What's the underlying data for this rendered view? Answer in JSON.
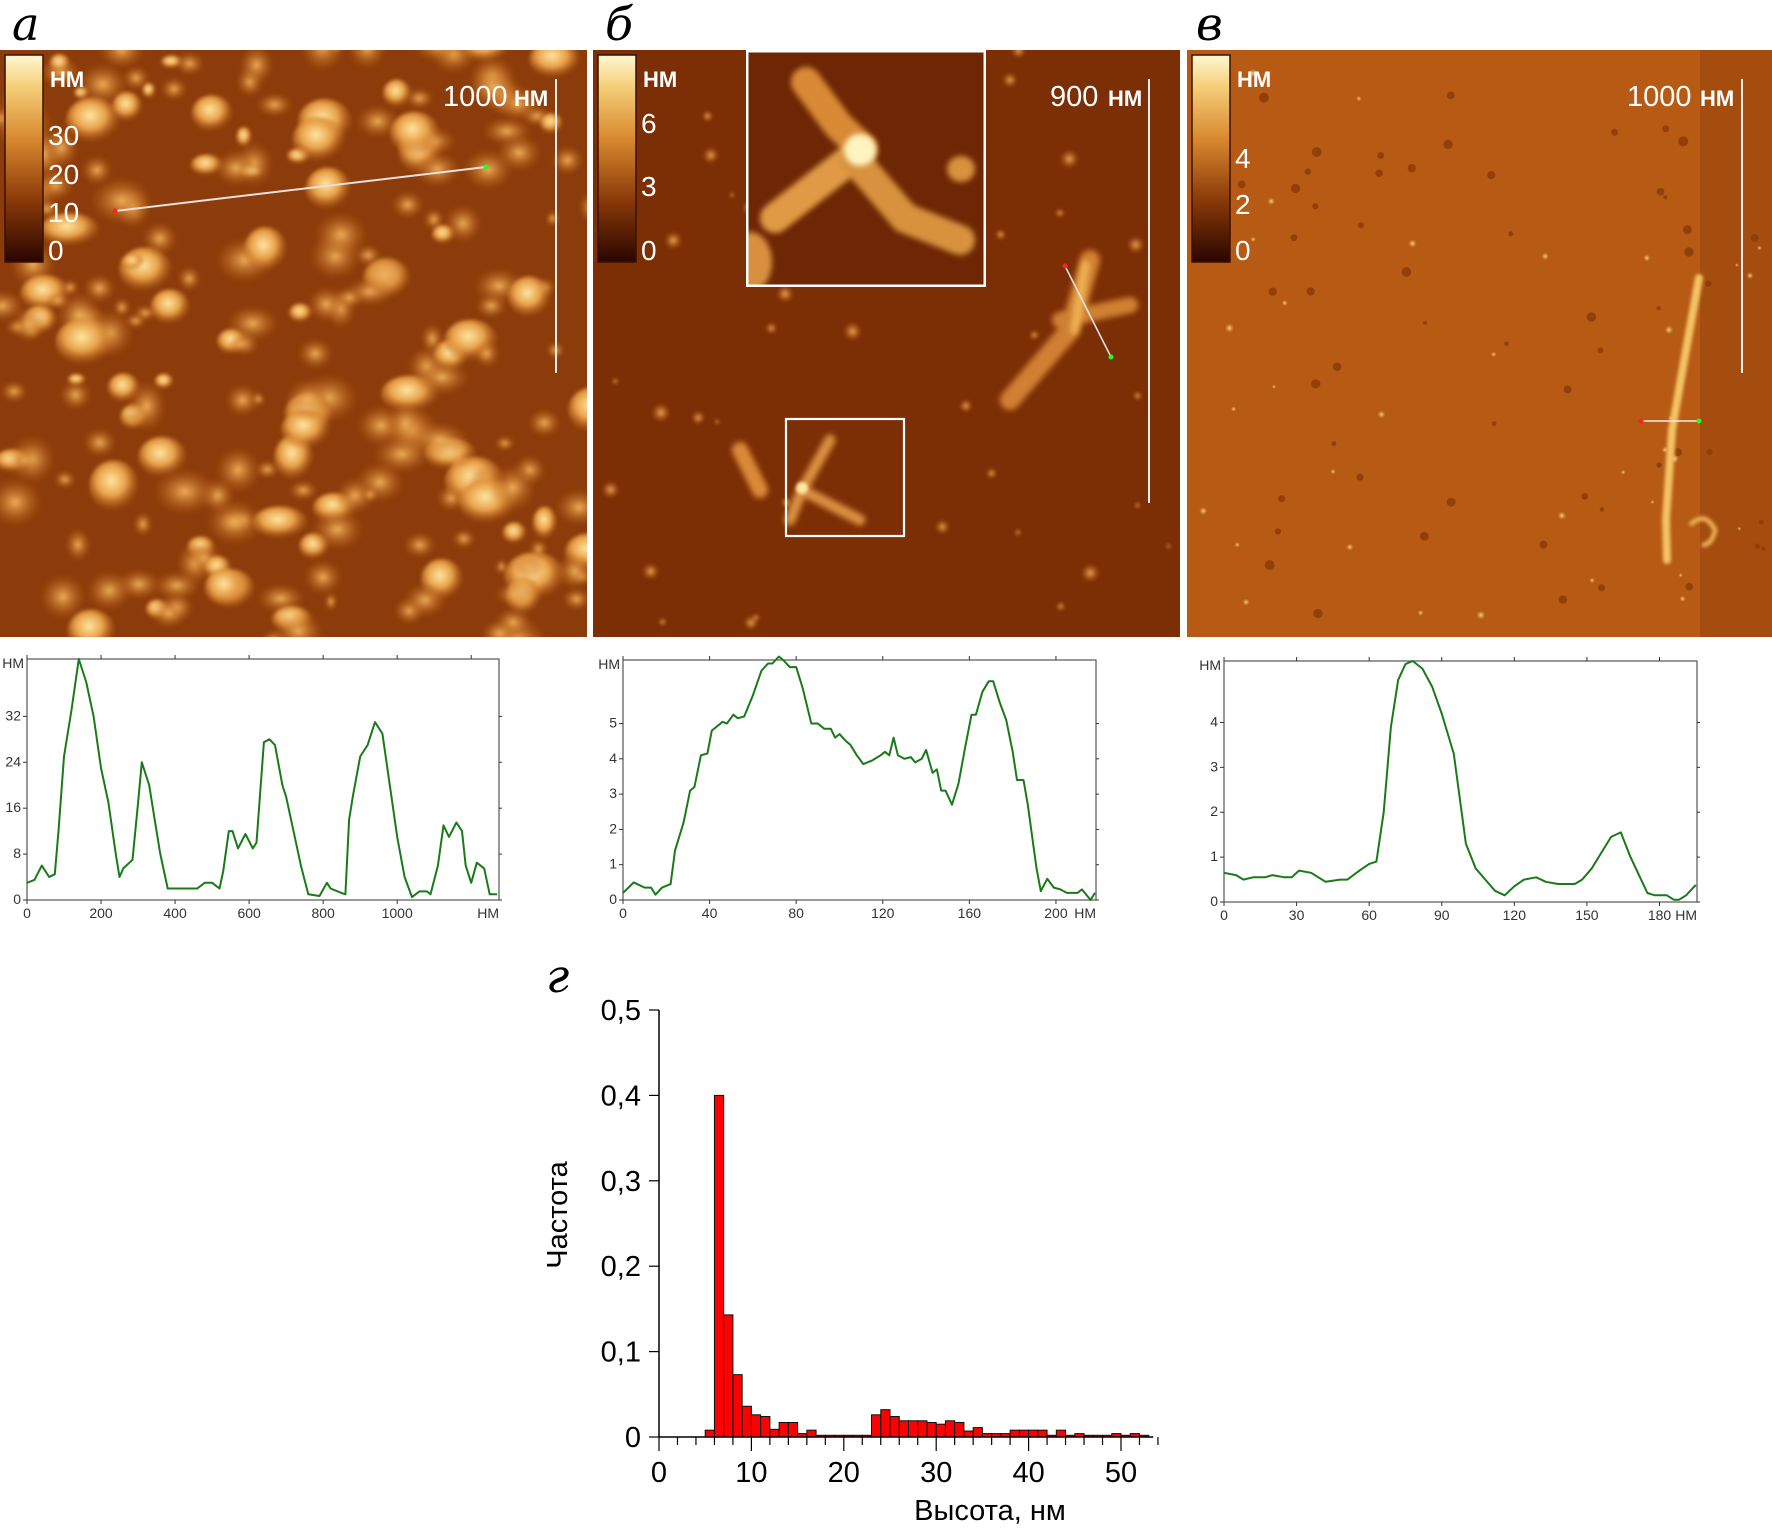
{
  "panels": [
    {
      "label": "а",
      "colorbar": {
        "unit": "НМ",
        "ticks": [
          "30",
          "20",
          "10",
          "0"
        ]
      },
      "scalebar": {
        "value": "1000",
        "unit": "НМ"
      }
    },
    {
      "label": "б",
      "colorbar": {
        "unit": "НМ",
        "ticks": [
          "6",
          "3",
          "0"
        ]
      },
      "scalebar": {
        "value": "900",
        "unit": "НМ"
      }
    },
    {
      "label": "в",
      "colorbar": {
        "unit": "НМ",
        "ticks": [
          "4",
          "2",
          "0"
        ]
      },
      "scalebar": {
        "value": "1000",
        "unit": "НМ"
      }
    }
  ],
  "histogram_label": "г",
  "colors": {
    "profile_line": "#1a7a1a",
    "bar_fill": "#ff0000",
    "afm_dark": "#3a0a00",
    "afm_light": "#fff4c0"
  },
  "chart_data": [
    {
      "type": "line",
      "title": "",
      "xlabel": "НМ",
      "ylabel": "НМ",
      "xlim": [
        0,
        1275
      ],
      "ylim": [
        0,
        42
      ],
      "xticks": [
        "0",
        "200",
        "400",
        "600",
        "800",
        "1000"
      ],
      "yticks": [
        "0",
        "8",
        "16",
        "24",
        "32"
      ],
      "x": [
        0,
        20,
        40,
        60,
        75,
        85,
        100,
        120,
        140,
        160,
        180,
        200,
        220,
        240,
        250,
        260,
        285,
        300,
        310,
        330,
        345,
        360,
        380,
        400,
        440,
        460,
        480,
        500,
        520,
        530,
        545,
        555,
        570,
        590,
        610,
        620,
        640,
        655,
        670,
        690,
        700,
        720,
        740,
        760,
        790,
        810,
        820,
        850,
        860,
        870,
        880,
        900,
        920,
        940,
        960,
        980,
        1000,
        1020,
        1040,
        1060,
        1080,
        1090,
        1110,
        1125,
        1140,
        1160,
        1175,
        1185,
        1200,
        1215,
        1235,
        1250,
        1270
      ],
      "y": [
        3,
        3.5,
        6,
        4,
        4.5,
        12,
        25,
        33,
        42,
        38,
        32,
        23,
        17,
        8,
        4,
        5.5,
        7,
        17,
        24,
        20,
        14,
        8,
        2,
        2,
        2,
        2,
        3,
        3,
        2,
        5,
        12,
        12,
        9,
        11.5,
        9,
        10,
        27.5,
        28,
        27,
        20,
        18,
        12,
        6,
        1,
        0.7,
        3,
        2,
        1.2,
        1,
        14,
        18,
        25,
        27,
        31,
        29,
        20,
        11,
        4,
        0.5,
        1.5,
        1.5,
        1,
        6,
        13,
        11,
        13.5,
        12,
        6,
        3,
        6.5,
        5.5,
        1,
        1
      ]
    },
    {
      "type": "line",
      "title": "",
      "xlabel": "НМ",
      "ylabel": "НМ",
      "xlim": [
        0,
        218.5
      ],
      "ylim": [
        0,
        6.8
      ],
      "xticks": [
        "0",
        "40",
        "80",
        "120",
        "160",
        "200"
      ],
      "yticks": [
        "0",
        "1",
        "2",
        "3",
        "4",
        "5"
      ],
      "x": [
        0,
        5,
        10,
        13,
        15,
        18,
        22,
        24,
        28,
        31,
        33,
        36,
        39,
        41,
        46,
        48,
        51,
        53,
        56,
        60,
        64,
        67,
        69,
        72,
        74,
        77,
        80,
        83,
        87,
        90,
        93,
        96,
        98,
        100,
        103,
        105,
        108,
        111,
        115,
        119,
        121,
        123,
        125,
        127,
        130,
        133,
        135,
        138,
        140,
        143,
        145,
        147,
        149,
        152,
        155,
        158,
        161,
        163,
        166,
        169,
        171,
        174,
        177,
        180,
        182,
        185,
        187,
        191,
        193,
        196,
        199,
        202,
        205,
        210,
        212,
        216,
        218
      ],
      "y": [
        0.2,
        0.5,
        0.35,
        0.35,
        0.15,
        0.35,
        0.45,
        1.4,
        2.2,
        3.1,
        3.2,
        4.1,
        4.15,
        4.8,
        5.05,
        5.0,
        5.25,
        5.15,
        5.2,
        5.8,
        6.5,
        6.7,
        6.7,
        6.9,
        6.8,
        6.6,
        6.6,
        6.0,
        5.0,
        5.0,
        4.85,
        4.85,
        4.6,
        4.7,
        4.5,
        4.4,
        4.1,
        3.85,
        3.95,
        4.1,
        4.2,
        4.1,
        4.6,
        4.1,
        4.0,
        4.05,
        3.9,
        4.0,
        4.25,
        3.6,
        3.7,
        3.1,
        3.1,
        2.7,
        3.3,
        4.3,
        5.25,
        5.25,
        5.9,
        6.2,
        6.2,
        5.6,
        5.1,
        4.2,
        3.4,
        3.4,
        2.7,
        0.9,
        0.25,
        0.6,
        0.35,
        0.3,
        0.2,
        0.2,
        0.3,
        0,
        0.2
      ]
    },
    {
      "type": "line",
      "title": "",
      "xlabel": "НМ",
      "ylabel": "НМ",
      "xlim": [
        0,
        195.5
      ],
      "ylim": [
        0,
        5.37
      ],
      "xticks": [
        "0",
        "30",
        "60",
        "90",
        "120",
        "150",
        "180"
      ],
      "yticks": [
        "0",
        "1",
        "2",
        "3",
        "4"
      ],
      "x": [
        0,
        5,
        8,
        12,
        17,
        20,
        25,
        28,
        31,
        36,
        42,
        48,
        51,
        56,
        60,
        63,
        66,
        69,
        72,
        75,
        78,
        82,
        86,
        90,
        95,
        100,
        104,
        108,
        112,
        116,
        120,
        124,
        129,
        133,
        138,
        145,
        148,
        152,
        156,
        160,
        164,
        168,
        175,
        178,
        183,
        186,
        188,
        191,
        195
      ],
      "y": [
        0.65,
        0.6,
        0.5,
        0.55,
        0.55,
        0.6,
        0.55,
        0.55,
        0.7,
        0.65,
        0.45,
        0.5,
        0.5,
        0.7,
        0.85,
        0.9,
        2.0,
        3.9,
        4.95,
        5.3,
        5.37,
        5.2,
        4.8,
        4.2,
        3.3,
        1.3,
        0.75,
        0.5,
        0.25,
        0.15,
        0.35,
        0.5,
        0.55,
        0.45,
        0.4,
        0.4,
        0.5,
        0.75,
        1.1,
        1.45,
        1.55,
        1.0,
        0.2,
        0.15,
        0.15,
        0.05,
        0.05,
        0.15,
        0.38
      ]
    },
    {
      "type": "bar",
      "title": "",
      "xlabel": "Высота, нм",
      "ylabel": "Частота",
      "xlim": [
        0,
        53.5
      ],
      "ylim": [
        0,
        0.5
      ],
      "xticks": [
        "0",
        "10",
        "20",
        "30",
        "40",
        "50"
      ],
      "yticks": [
        "0",
        "0,1",
        "0,2",
        "0,3",
        "0,4",
        "0,5"
      ],
      "bin_width": 1,
      "bin_starts": [
        5,
        6,
        7,
        8,
        9,
        10,
        11,
        12,
        13,
        14,
        15,
        16,
        17,
        18,
        19,
        20,
        21,
        22,
        23,
        24,
        25,
        26,
        27,
        28,
        29,
        30,
        31,
        32,
        33,
        34,
        35,
        36,
        37,
        38,
        39,
        40,
        41,
        42,
        43,
        44,
        45,
        46,
        47,
        48,
        49,
        50,
        51,
        52
      ],
      "values": [
        0.008,
        0.4,
        0.143,
        0.073,
        0.036,
        0.026,
        0.024,
        0.009,
        0.017,
        0.017,
        0.004,
        0.008,
        0.002,
        0.002,
        0.002,
        0.002,
        0.002,
        0.002,
        0.026,
        0.032,
        0.024,
        0.019,
        0.019,
        0.019,
        0.017,
        0.015,
        0.019,
        0.017,
        0.007,
        0.011,
        0.004,
        0.004,
        0.004,
        0.008,
        0.008,
        0.008,
        0.008,
        0.002,
        0.008,
        0.002,
        0.004,
        0.002,
        0.002,
        0.002,
        0.004,
        0.002,
        0.004,
        0.002
      ]
    }
  ]
}
